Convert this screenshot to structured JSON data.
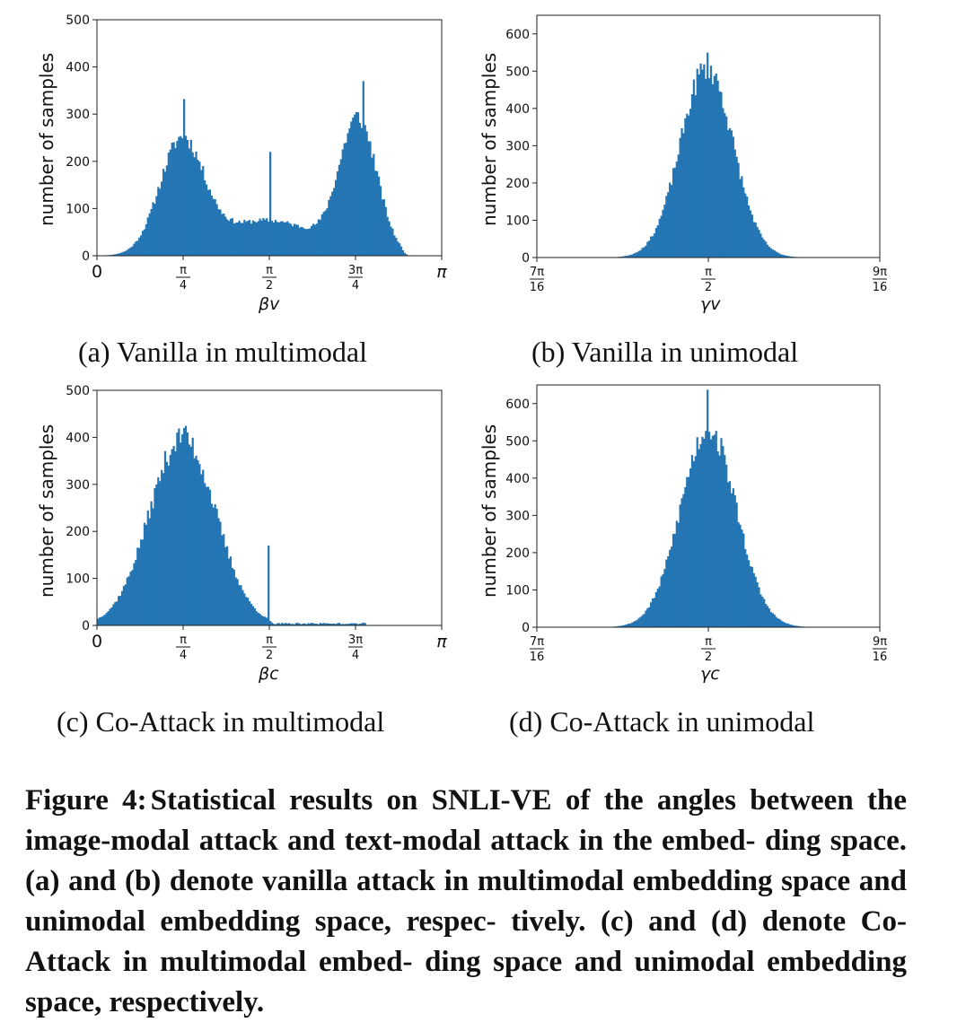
{
  "figure": {
    "caption_label": "Figure 4:",
    "caption_text": "Statistical results on SNLI-VE of the angles between the image-modal attack and text-modal attack in the embed- ding space. (a) and (b) denote vanilla attack in multimodal embedding space and unimodal embedding space, respec- tively. (c) and (d) denote Co-Attack in multimodal embed- ding space and unimodal embedding space, respectively."
  },
  "colors": {
    "bar": "#2475b4",
    "axis": "#222222"
  },
  "chart_data": [
    {
      "type": "bar",
      "caption": "(a) Vanilla in multimodal",
      "ylabel": "number of samples",
      "xlabel": "βv",
      "xlim": [
        0,
        3.14159
      ],
      "ylim": [
        0,
        500
      ],
      "yticks": [
        0,
        100,
        200,
        300,
        400,
        500
      ],
      "xticks": [
        {
          "value": 0,
          "label": "0"
        },
        {
          "value": 0.7854,
          "num": "π",
          "den": "4"
        },
        {
          "value": 1.5708,
          "num": "π",
          "den": "2"
        },
        {
          "value": 2.3562,
          "num": "3π",
          "den": "4"
        },
        {
          "value": 3.14159,
          "label": "π"
        }
      ],
      "bins": 200,
      "components": [
        {
          "mu": 0.77,
          "sigma": 0.2,
          "amp": 235
        },
        {
          "mu": 2.38,
          "sigma": 0.17,
          "amp": 280
        },
        {
          "mu": 1.55,
          "sigma": 0.45,
          "amp": 75
        }
      ],
      "cutoff_high": 2.75,
      "spikes": [
        {
          "x": 0.8,
          "value": 332
        },
        {
          "x": 1.58,
          "value": 220
        },
        {
          "x": 2.42,
          "value": 370
        }
      ]
    },
    {
      "type": "bar",
      "caption": "(b) Vanilla in unimodal",
      "ylabel": "number of samples",
      "xlabel": "γv",
      "xlim": [
        1.37445,
        1.76715
      ],
      "ylim": [
        0,
        650
      ],
      "yticks": [
        0,
        100,
        200,
        300,
        400,
        500,
        600
      ],
      "xticks": [
        {
          "value": 1.37445,
          "num": "7π",
          "den": "16"
        },
        {
          "value": 1.5708,
          "num": "π",
          "den": "2"
        },
        {
          "value": 1.76715,
          "num": "9π",
          "den": "16"
        }
      ],
      "bins": 200,
      "components": [
        {
          "mu": 1.5689,
          "sigma": 0.03,
          "amp": 510
        }
      ],
      "spikes": [
        {
          "x": 1.5689,
          "value": 550
        },
        {
          "x": 1.5708,
          "value": 515
        }
      ]
    },
    {
      "type": "bar",
      "caption": "(c) Co-Attack in multimodal",
      "ylabel": "number of samples",
      "xlabel": "βc",
      "xlim": [
        0,
        3.14159
      ],
      "ylim": [
        0,
        500
      ],
      "yticks": [
        0,
        100,
        200,
        300,
        400,
        500
      ],
      "xticks": [
        {
          "value": 0,
          "label": "0"
        },
        {
          "value": 0.7854,
          "num": "π",
          "den": "4"
        },
        {
          "value": 1.5708,
          "num": "π",
          "den": "2"
        },
        {
          "value": 2.3562,
          "num": "3π",
          "den": "4"
        },
        {
          "value": 3.14159,
          "label": "π"
        }
      ],
      "bins": 200,
      "components": [
        {
          "mu": 0.78,
          "sigma": 0.3,
          "amp": 400
        }
      ],
      "cutoff_high": 1.55,
      "tail": {
        "from": 1.55,
        "to": 2.45,
        "value": 4
      },
      "spikes": [
        {
          "x": 0.8,
          "value": 420
        },
        {
          "x": 1.56,
          "value": 170
        }
      ]
    },
    {
      "type": "bar",
      "caption": "(d) Co-Attack in unimodal",
      "ylabel": "number of samples",
      "xlabel": "γc",
      "xlim": [
        1.37445,
        1.76715
      ],
      "ylim": [
        0,
        650
      ],
      "yticks": [
        0,
        100,
        200,
        300,
        400,
        500,
        600
      ],
      "xticks": [
        {
          "value": 1.37445,
          "num": "7π",
          "den": "16"
        },
        {
          "value": 1.5708,
          "num": "π",
          "den": "2"
        },
        {
          "value": 1.76715,
          "num": "9π",
          "den": "16"
        }
      ],
      "bins": 200,
      "components": [
        {
          "mu": 1.5708,
          "sigma": 0.032,
          "amp": 530
        }
      ],
      "spikes": [
        {
          "x": 1.5689,
          "value": 637
        },
        {
          "x": 1.5708,
          "value": 545
        }
      ]
    }
  ]
}
